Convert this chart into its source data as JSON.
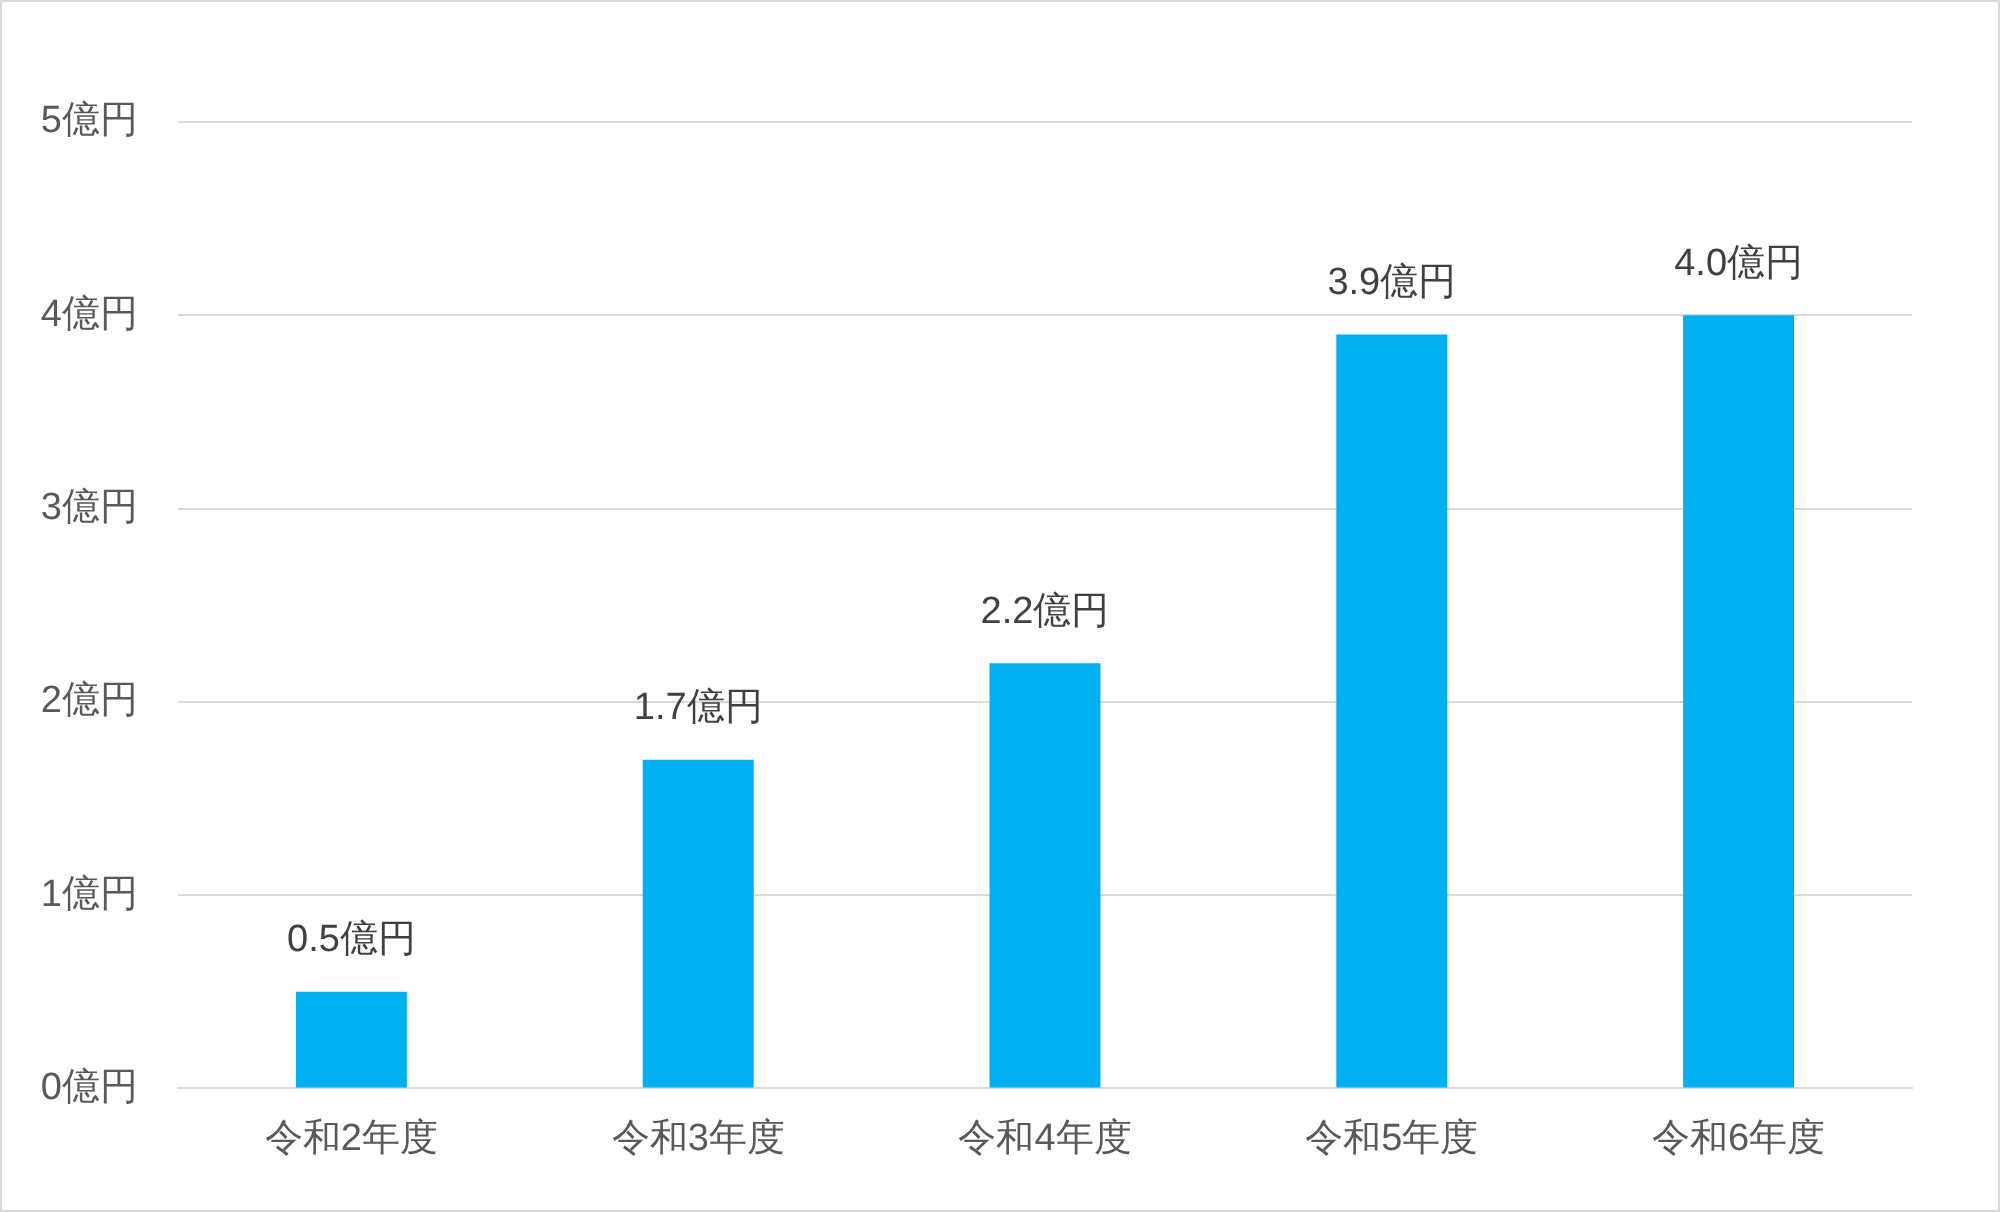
{
  "chart_data": {
    "type": "bar",
    "categories": [
      "令和2年度",
      "令和3年度",
      "令和4年度",
      "令和5年度",
      "令和6年度"
    ],
    "values": [
      0.5,
      1.7,
      2.2,
      3.9,
      4.0
    ],
    "value_labels": [
      "0.5億円",
      "1.7億円",
      "2.2億円",
      "3.9億円",
      "4.0億円"
    ],
    "color": "#00b0f0",
    "ylim": [
      0,
      5
    ],
    "yticks": [
      {
        "value": 0,
        "label": "0億円"
      },
      {
        "value": 1,
        "label": "1億円"
      },
      {
        "value": 2,
        "label": "2億円"
      },
      {
        "value": 3,
        "label": "3億円"
      },
      {
        "value": 4,
        "label": "4億円"
      },
      {
        "value": 5,
        "label": "5億円"
      }
    ],
    "grid": "y"
  }
}
